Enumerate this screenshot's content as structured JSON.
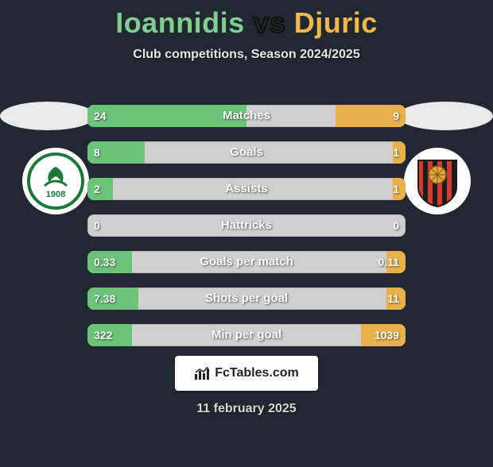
{
  "title": {
    "player1": "Ioannidis",
    "vs": "vs",
    "player2": "Djuric",
    "player1_color": "#7fcf8f",
    "player2_color": "#f0b74a"
  },
  "subtitle": "Club competitions, Season 2024/2025",
  "bar_style": {
    "left_color": "#6cc47a",
    "right_color": "#e9b14b",
    "track_color": "#cfcfcf",
    "height": 28,
    "gap": 18,
    "radius": 8
  },
  "stats": [
    {
      "label": "Matches",
      "left_val": "24",
      "right_val": "9",
      "left_pct": 50,
      "right_pct": 22
    },
    {
      "label": "Goals",
      "left_val": "8",
      "right_val": "1",
      "left_pct": 18,
      "right_pct": 4
    },
    {
      "label": "Assists",
      "left_val": "2",
      "right_val": "1",
      "left_pct": 8,
      "right_pct": 4
    },
    {
      "label": "Hattricks",
      "left_val": "0",
      "right_val": "0",
      "left_pct": 0,
      "right_pct": 0
    },
    {
      "label": "Goals per match",
      "left_val": "0.33",
      "right_val": "0.11",
      "left_pct": 14,
      "right_pct": 6
    },
    {
      "label": "Shots per goal",
      "left_val": "7.38",
      "right_val": "11",
      "left_pct": 16,
      "right_pct": 6
    },
    {
      "label": "Min per goal",
      "left_val": "322",
      "right_val": "1039",
      "left_pct": 14,
      "right_pct": 14
    }
  ],
  "brand": "FcTables.com",
  "date": "11 february 2025",
  "club_left": {
    "type": "panathinaikos-style",
    "outer_color": "#ffffff",
    "inner_color": "#1b7a3a",
    "text": "1908"
  },
  "club_right": {
    "type": "vikingur-style",
    "outer_color": "#ffffff",
    "stripes": [
      "#d23b2e",
      "#1c1c1c"
    ],
    "ball_color": "#e0a83a"
  }
}
